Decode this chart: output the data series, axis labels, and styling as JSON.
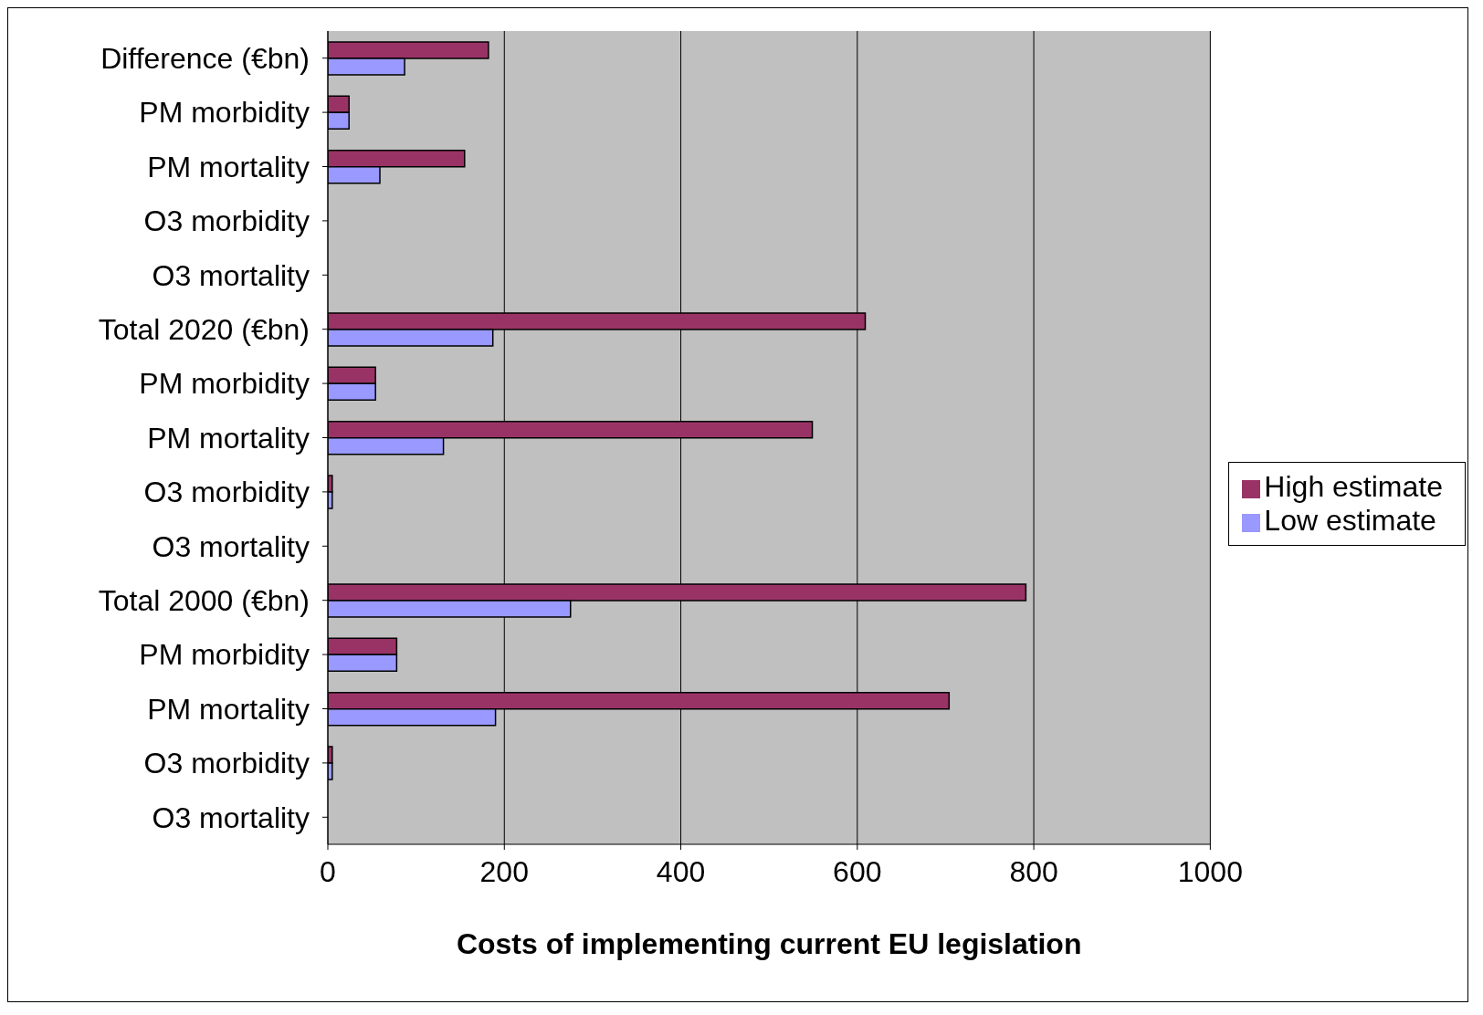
{
  "chart_data": {
    "type": "bar",
    "orientation": "horizontal",
    "xlabel": "Costs of implementing current EU legislation",
    "categories": [
      "Difference (€bn)",
      "PM morbidity",
      "PM mortality",
      "O3 morbidity",
      "O3 mortality",
      "Total  2020 (€bn)",
      "PM morbidity",
      "PM mortality",
      "O3 morbidity",
      "O3 mortality",
      "Total  2000 (€bn)",
      "PM morbidity",
      "PM mortality",
      "O3 morbidity",
      "O3 mortality"
    ],
    "series": [
      {
        "name": "High estimate",
        "color": "#993366",
        "values": [
          182,
          24,
          155,
          0,
          0,
          609,
          54,
          549,
          5,
          0,
          791,
          78,
          704,
          5,
          0
        ]
      },
      {
        "name": "Low estimate",
        "color": "#9999ff",
        "values": [
          87,
          24,
          59,
          0,
          0,
          187,
          54,
          131,
          5,
          0,
          275,
          78,
          190,
          5,
          0
        ]
      }
    ],
    "xlim": [
      0,
      1000
    ],
    "xticks": [
      0,
      200,
      400,
      600,
      800,
      1000
    ],
    "grid": "x",
    "legend": "right"
  }
}
